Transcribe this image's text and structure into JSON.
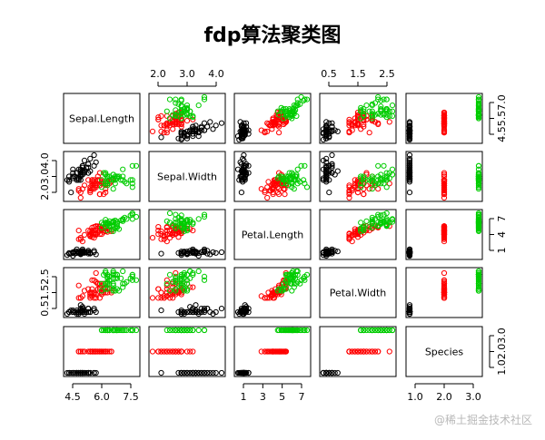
{
  "chart_data": {
    "type": "scatter",
    "subtype": "pairs-matrix",
    "title": "fdp算法聚类图",
    "variables": [
      "Sepal.Length",
      "Sepal.Width",
      "Petal.Length",
      "Petal.Width",
      "Species"
    ],
    "ranges": [
      [
        4.3,
        7.9
      ],
      [
        2.0,
        4.4
      ],
      [
        1.0,
        6.9
      ],
      [
        0.1,
        2.5
      ],
      [
        1,
        3
      ]
    ],
    "tick_labels": {
      "top": [
        {
          "var": 1,
          "ticks": [
            "2.0",
            "3.0",
            "4.0"
          ]
        },
        {
          "var": 3,
          "ticks": [
            "0.5",
            "1.5",
            "2.5"
          ]
        }
      ],
      "bottom": [
        {
          "var": 0,
          "ticks": [
            "4.5",
            "6.0",
            "7.5"
          ]
        },
        {
          "var": 2,
          "ticks": [
            "1",
            "3",
            "5",
            "7"
          ]
        },
        {
          "var": 4,
          "ticks": [
            "1.0",
            "2.0",
            "3.0"
          ]
        }
      ],
      "left": [
        {
          "var": 1,
          "ticks": [
            "2.0",
            "3.0",
            "4.0"
          ]
        },
        {
          "var": 3,
          "ticks": [
            "0.5",
            "1.5",
            "2.5"
          ]
        }
      ],
      "right": [
        {
          "var": 0,
          "ticks": [
            "4.5",
            "5.5",
            "7.0"
          ]
        },
        {
          "var": 2,
          "ticks": [
            "1",
            "4",
            "7"
          ]
        },
        {
          "var": 4,
          "ticks": [
            "1.0",
            "2.0",
            "3.0"
          ]
        }
      ]
    },
    "series": [
      {
        "color": "#000000",
        "points": [
          [
            5.1,
            3.5,
            1.4,
            0.2,
            1
          ],
          [
            4.9,
            3.0,
            1.4,
            0.2,
            1
          ],
          [
            4.7,
            3.2,
            1.3,
            0.2,
            1
          ],
          [
            4.6,
            3.1,
            1.5,
            0.2,
            1
          ],
          [
            5.0,
            3.6,
            1.4,
            0.2,
            1
          ],
          [
            5.4,
            3.9,
            1.7,
            0.4,
            1
          ],
          [
            4.6,
            3.4,
            1.4,
            0.3,
            1
          ],
          [
            5.0,
            3.4,
            1.5,
            0.2,
            1
          ],
          [
            4.4,
            2.9,
            1.4,
            0.2,
            1
          ],
          [
            4.9,
            3.1,
            1.5,
            0.1,
            1
          ],
          [
            5.4,
            3.7,
            1.5,
            0.2,
            1
          ],
          [
            4.8,
            3.4,
            1.6,
            0.2,
            1
          ],
          [
            4.8,
            3.0,
            1.4,
            0.1,
            1
          ],
          [
            4.3,
            3.0,
            1.1,
            0.1,
            1
          ],
          [
            5.8,
            4.0,
            1.2,
            0.2,
            1
          ],
          [
            5.7,
            4.4,
            1.5,
            0.4,
            1
          ],
          [
            5.4,
            3.9,
            1.3,
            0.4,
            1
          ],
          [
            5.1,
            3.5,
            1.4,
            0.3,
            1
          ],
          [
            5.7,
            3.8,
            1.7,
            0.3,
            1
          ],
          [
            5.1,
            3.8,
            1.5,
            0.3,
            1
          ],
          [
            5.4,
            3.4,
            1.7,
            0.2,
            1
          ],
          [
            5.1,
            3.7,
            1.5,
            0.4,
            1
          ],
          [
            4.6,
            3.6,
            1.0,
            0.2,
            1
          ],
          [
            5.1,
            3.3,
            1.7,
            0.5,
            1
          ],
          [
            4.8,
            3.4,
            1.9,
            0.2,
            1
          ],
          [
            5.0,
            3.0,
            1.6,
            0.2,
            1
          ],
          [
            5.0,
            3.4,
            1.6,
            0.4,
            1
          ],
          [
            5.2,
            3.5,
            1.5,
            0.2,
            1
          ],
          [
            5.2,
            3.4,
            1.4,
            0.2,
            1
          ],
          [
            4.7,
            3.2,
            1.6,
            0.2,
            1
          ],
          [
            4.8,
            3.1,
            1.6,
            0.2,
            1
          ],
          [
            5.4,
            3.4,
            1.5,
            0.4,
            1
          ],
          [
            5.2,
            4.1,
            1.5,
            0.1,
            1
          ],
          [
            5.5,
            4.2,
            1.4,
            0.2,
            1
          ],
          [
            4.9,
            3.1,
            1.5,
            0.2,
            1
          ],
          [
            5.0,
            3.2,
            1.2,
            0.2,
            1
          ],
          [
            5.5,
            3.5,
            1.3,
            0.2,
            1
          ],
          [
            4.9,
            3.6,
            1.4,
            0.1,
            1
          ],
          [
            4.4,
            3.0,
            1.3,
            0.2,
            1
          ],
          [
            5.1,
            3.4,
            1.5,
            0.2,
            1
          ],
          [
            5.0,
            3.5,
            1.3,
            0.3,
            1
          ],
          [
            4.5,
            2.3,
            1.3,
            0.3,
            1
          ],
          [
            4.4,
            3.2,
            1.3,
            0.2,
            1
          ],
          [
            5.0,
            3.5,
            1.6,
            0.6,
            1
          ],
          [
            5.1,
            3.8,
            1.9,
            0.4,
            1
          ],
          [
            4.8,
            3.0,
            1.4,
            0.3,
            1
          ],
          [
            5.1,
            3.8,
            1.6,
            0.2,
            1
          ],
          [
            4.6,
            3.2,
            1.4,
            0.2,
            1
          ],
          [
            5.3,
            3.7,
            1.5,
            0.2,
            1
          ],
          [
            5.0,
            3.3,
            1.4,
            0.2,
            1
          ]
        ]
      },
      {
        "color": "#ff0000",
        "points": [
          [
            5.5,
            2.3,
            4.0,
            1.3,
            2
          ],
          [
            6.5,
            2.8,
            4.6,
            1.5,
            2
          ],
          [
            5.7,
            2.8,
            4.5,
            1.3,
            2
          ],
          [
            6.3,
            3.3,
            4.7,
            1.6,
            2
          ],
          [
            4.9,
            2.4,
            3.3,
            1.0,
            2
          ],
          [
            6.6,
            2.9,
            4.6,
            1.3,
            2
          ],
          [
            5.2,
            2.7,
            3.9,
            1.4,
            2
          ],
          [
            5.0,
            2.0,
            3.5,
            1.0,
            2
          ],
          [
            5.9,
            3.0,
            4.2,
            1.5,
            2
          ],
          [
            6.0,
            2.2,
            4.0,
            1.0,
            2
          ],
          [
            6.1,
            2.9,
            4.7,
            1.4,
            2
          ],
          [
            5.6,
            2.9,
            3.6,
            1.3,
            2
          ],
          [
            5.6,
            3.0,
            4.5,
            1.5,
            2
          ],
          [
            5.8,
            2.7,
            4.1,
            1.0,
            2
          ],
          [
            6.2,
            2.2,
            4.5,
            1.5,
            2
          ],
          [
            5.6,
            2.5,
            3.9,
            1.1,
            2
          ],
          [
            5.9,
            3.2,
            4.8,
            1.8,
            2
          ],
          [
            6.1,
            2.8,
            4.0,
            1.3,
            2
          ],
          [
            6.3,
            2.5,
            4.9,
            1.5,
            2
          ],
          [
            6.1,
            2.8,
            4.7,
            1.2,
            2
          ],
          [
            6.4,
            2.9,
            4.3,
            1.3,
            2
          ],
          [
            6.6,
            3.0,
            4.4,
            1.4,
            2
          ],
          [
            5.7,
            2.6,
            3.5,
            1.0,
            2
          ],
          [
            5.5,
            2.4,
            3.8,
            1.1,
            2
          ],
          [
            5.5,
            2.4,
            3.7,
            1.0,
            2
          ],
          [
            5.8,
            2.7,
            3.9,
            1.2,
            2
          ],
          [
            6.0,
            2.7,
            5.1,
            1.6,
            2
          ],
          [
            5.4,
            3.0,
            4.5,
            1.5,
            2
          ],
          [
            6.0,
            3.4,
            4.5,
            1.6,
            2
          ],
          [
            6.3,
            2.3,
            4.4,
            1.3,
            2
          ],
          [
            5.6,
            3.0,
            4.1,
            1.3,
            2
          ],
          [
            5.5,
            2.5,
            4.0,
            1.3,
            2
          ],
          [
            5.5,
            2.6,
            4.4,
            1.2,
            2
          ],
          [
            6.1,
            3.0,
            4.6,
            1.4,
            2
          ],
          [
            5.8,
            2.6,
            4.0,
            1.2,
            2
          ],
          [
            5.0,
            2.3,
            3.3,
            1.0,
            2
          ],
          [
            5.6,
            2.7,
            4.2,
            1.3,
            2
          ],
          [
            5.7,
            3.0,
            4.2,
            1.2,
            2
          ],
          [
            5.7,
            2.9,
            4.2,
            1.3,
            2
          ],
          [
            6.2,
            2.9,
            4.3,
            1.3,
            2
          ],
          [
            5.1,
            2.5,
            3.0,
            1.1,
            2
          ],
          [
            5.7,
            2.8,
            4.1,
            1.3,
            2
          ],
          [
            4.9,
            2.5,
            4.5,
            1.7,
            2
          ],
          [
            5.7,
            2.5,
            5.0,
            2.0,
            2
          ],
          [
            5.8,
            2.8,
            5.1,
            2.4,
            2
          ],
          [
            6.0,
            2.2,
            5.0,
            1.5,
            2
          ],
          [
            6.3,
            2.7,
            4.9,
            1.8,
            2
          ],
          [
            5.6,
            2.8,
            4.9,
            2.0,
            2
          ],
          [
            6.2,
            2.8,
            4.8,
            1.8,
            2
          ],
          [
            6.3,
            2.8,
            5.1,
            1.5,
            2
          ],
          [
            5.9,
            3.0,
            5.1,
            1.8,
            2
          ],
          [
            6.0,
            3.0,
            4.8,
            1.8,
            2
          ],
          [
            5.8,
            2.7,
            5.1,
            1.9,
            2
          ],
          [
            5.8,
            2.7,
            5.1,
            1.9,
            2
          ]
        ]
      },
      {
        "color": "#00cc00",
        "points": [
          [
            7.0,
            3.2,
            4.7,
            1.4,
            3
          ],
          [
            6.4,
            3.2,
            4.5,
            1.5,
            3
          ],
          [
            6.9,
            3.1,
            4.9,
            1.5,
            3
          ],
          [
            6.7,
            3.1,
            4.4,
            1.4,
            3
          ],
          [
            6.8,
            2.8,
            4.8,
            1.4,
            3
          ],
          [
            6.7,
            3.0,
            5.0,
            1.7,
            3
          ],
          [
            6.7,
            3.1,
            4.7,
            1.5,
            3
          ],
          [
            6.9,
            3.1,
            5.4,
            2.1,
            3
          ],
          [
            6.3,
            3.3,
            6.0,
            2.5,
            3
          ],
          [
            7.1,
            3.0,
            5.9,
            2.1,
            3
          ],
          [
            6.3,
            2.9,
            5.6,
            1.8,
            3
          ],
          [
            6.5,
            3.0,
            5.8,
            2.2,
            3
          ],
          [
            7.6,
            3.0,
            6.6,
            2.1,
            3
          ],
          [
            7.3,
            2.9,
            6.3,
            1.8,
            3
          ],
          [
            6.7,
            2.5,
            5.8,
            1.8,
            3
          ],
          [
            7.2,
            3.6,
            6.1,
            2.5,
            3
          ],
          [
            6.5,
            3.2,
            5.1,
            2.0,
            3
          ],
          [
            6.4,
            2.7,
            5.3,
            1.9,
            3
          ],
          [
            6.8,
            3.0,
            5.5,
            2.1,
            3
          ],
          [
            6.4,
            3.2,
            5.3,
            2.3,
            3
          ],
          [
            6.5,
            3.0,
            5.5,
            1.8,
            3
          ],
          [
            7.7,
            3.8,
            6.7,
            2.2,
            3
          ],
          [
            7.7,
            2.6,
            6.9,
            2.3,
            3
          ],
          [
            6.9,
            3.2,
            5.7,
            2.3,
            3
          ],
          [
            7.7,
            2.8,
            6.7,
            2.0,
            3
          ],
          [
            6.7,
            3.3,
            5.7,
            2.1,
            3
          ],
          [
            7.2,
            3.2,
            6.0,
            1.8,
            3
          ],
          [
            6.1,
            3.0,
            4.9,
            1.8,
            3
          ],
          [
            6.4,
            2.8,
            5.6,
            2.1,
            3
          ],
          [
            7.2,
            3.0,
            5.8,
            1.6,
            3
          ],
          [
            7.4,
            2.8,
            6.1,
            1.9,
            3
          ],
          [
            7.9,
            3.8,
            6.4,
            2.0,
            3
          ],
          [
            6.4,
            2.8,
            5.6,
            2.2,
            3
          ],
          [
            6.3,
            2.8,
            5.1,
            1.5,
            3
          ],
          [
            6.1,
            2.6,
            5.6,
            1.4,
            3
          ],
          [
            7.7,
            3.0,
            6.1,
            2.3,
            3
          ],
          [
            6.3,
            3.4,
            5.6,
            2.4,
            3
          ],
          [
            6.4,
            3.1,
            5.5,
            1.8,
            3
          ],
          [
            6.9,
            3.1,
            5.1,
            2.3,
            3
          ],
          [
            6.7,
            3.1,
            5.6,
            2.4,
            3
          ],
          [
            6.9,
            3.2,
            5.7,
            2.3,
            3
          ],
          [
            6.8,
            3.2,
            5.9,
            2.3,
            3
          ],
          [
            6.7,
            3.3,
            5.7,
            2.5,
            3
          ],
          [
            6.7,
            3.0,
            5.2,
            2.3,
            3
          ],
          [
            6.5,
            3.0,
            5.2,
            2.0,
            3
          ],
          [
            6.2,
            3.4,
            5.4,
            2.3,
            3
          ]
        ]
      }
    ],
    "grid": false,
    "legend": "none"
  },
  "watermark": "@稀土掘金技术社区"
}
